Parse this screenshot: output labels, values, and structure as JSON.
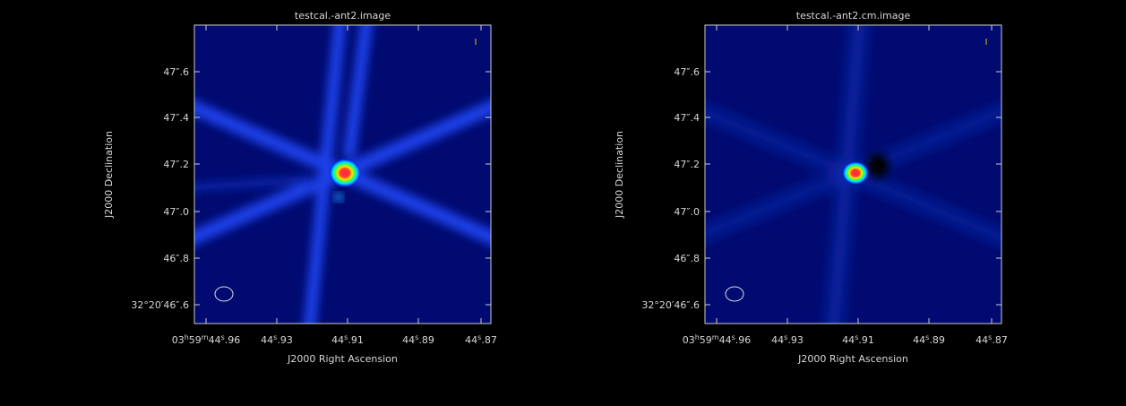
{
  "panels": [
    {
      "title": "testcal.-ant2.image",
      "x_axis_label": "J2000 Right Ascension",
      "y_axis_label": "J2000 Declination",
      "x_tick_labels": [
        [
          "03",
          "h",
          "59",
          "m",
          "44",
          "s",
          ".96"
        ],
        [
          "44",
          "s",
          ".93"
        ],
        [
          "44",
          "s",
          ".91"
        ],
        [
          "44",
          "s",
          ".89"
        ],
        [
          "44",
          "s",
          ".87"
        ]
      ],
      "y_tick_labels": [
        "32°20′46″.6",
        "46″.8",
        "47″.0",
        "47″.2",
        "47″.4",
        "47″.6"
      ]
    },
    {
      "title": "testcal.-ant2.cm.image",
      "x_axis_label": "J2000 Right Ascension",
      "y_axis_label": "J2000 Declination",
      "x_tick_labels": [
        [
          "03",
          "h",
          "59",
          "m",
          "44",
          "s",
          ".96"
        ],
        [
          "44",
          "s",
          ".93"
        ],
        [
          "44",
          "s",
          ".91"
        ],
        [
          "44",
          "s",
          ".89"
        ],
        [
          "44",
          "s",
          ".87"
        ]
      ],
      "y_tick_labels": [
        "32°20′46″.6",
        "46″.8",
        "47″.0",
        "47″.2",
        "47″.4",
        "47″.6"
      ]
    }
  ]
}
